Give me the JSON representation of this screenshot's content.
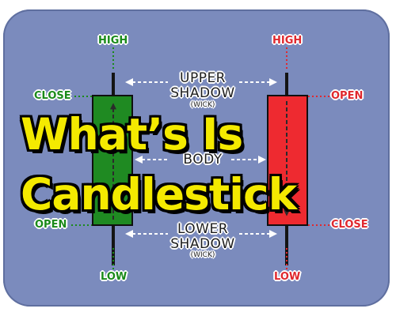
{
  "colors": {
    "background": "#7b8bbd",
    "bullish": "#1a8a1a",
    "bearish": "#e0282e",
    "title": "#f4ea00"
  },
  "title": {
    "line1": "What’s Is",
    "line2": "Candlestick"
  },
  "green_candle": {
    "high": "HIGH",
    "close": "CLOSE",
    "open": "OPEN",
    "low": "LOW"
  },
  "red_candle": {
    "high": "HIGH",
    "open": "OPEN",
    "close": "CLOSE",
    "low": "LOW"
  },
  "parts": {
    "upper_shadow_1": "UPPER",
    "upper_shadow_2": "SHADOW",
    "upper_wick": "(WICK)",
    "body": "BODY",
    "lower_shadow_1": "LOWER",
    "lower_shadow_2": "SHADOW",
    "lower_wick": "(WICK)"
  }
}
